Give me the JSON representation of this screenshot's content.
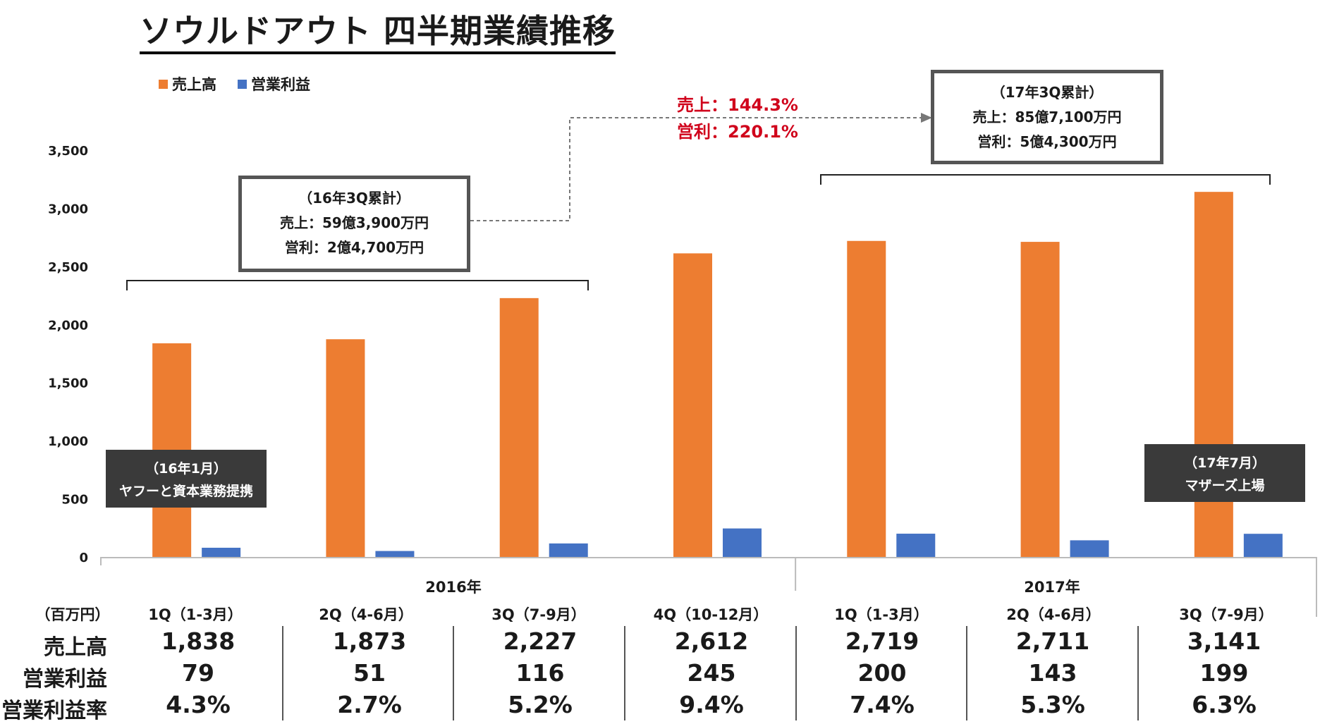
{
  "title": "ソウルドアウト 四半期業績推移",
  "legend": {
    "sales": "売上高",
    "op_profit": "営業利益"
  },
  "colors": {
    "sales": "#ED7D31",
    "op_profit": "#4472C4",
    "growth": "#d0021b"
  },
  "callouts": {
    "fy16": {
      "l1": "（16年3Q累計）",
      "l2": "売上：59億3,900万円",
      "l3": "営利：2億4,700万円"
    },
    "fy17": {
      "l1": "（17年3Q累計）",
      "l2": "売上：85億7,100万円",
      "l3": "営利：5億4,300万円"
    },
    "growth_sales": "売上：144.3%",
    "growth_op": "営利：220.1%"
  },
  "notes": {
    "yahoo": {
      "l1": "（16年1月）",
      "l2": "ヤフーと資本業務提携"
    },
    "mothers": {
      "l1": "（17年7月）",
      "l2": "マザーズ上場"
    }
  },
  "years": [
    "2016年",
    "2017年"
  ],
  "table": {
    "unit_label": "（百万円）",
    "row_sales": "売上高",
    "row_op": "営業利益",
    "row_margin": "営業利益率",
    "margins": [
      "4.3%",
      "2.7%",
      "5.2%",
      "9.4%",
      "7.4%",
      "5.3%",
      "6.3%"
    ],
    "sales_fmt": [
      "1,838",
      "1,873",
      "2,227",
      "2,612",
      "2,719",
      "2,711",
      "3,141"
    ],
    "op_fmt": [
      "79",
      "51",
      "116",
      "245",
      "200",
      "143",
      "199"
    ]
  },
  "chart_data": {
    "type": "bar",
    "title": "ソウルドアウト 四半期業績推移",
    "unit": "（百万円）",
    "categories": [
      "1Q（1-3月）",
      "2Q（4-6月）",
      "3Q（7-9月）",
      "4Q（10-12月）",
      "1Q（1-3月）",
      "2Q（4-6月）",
      "3Q（7-9月）"
    ],
    "year_groups": [
      {
        "label": "2016年",
        "count": 4
      },
      {
        "label": "2017年",
        "count": 3
      }
    ],
    "series": [
      {
        "name": "売上高",
        "values": [
          1838,
          1873,
          2227,
          2612,
          2719,
          2711,
          3141
        ]
      },
      {
        "name": "営業利益",
        "values": [
          79,
          51,
          116,
          245,
          200,
          143,
          199
        ]
      }
    ],
    "y_ticks": [
      "0",
      "500",
      "1,000",
      "1,500",
      "2,000",
      "2,500",
      "3,000",
      "3,500"
    ],
    "ylim": [
      0,
      3500
    ],
    "grid": false,
    "legend_position": "top-left"
  }
}
